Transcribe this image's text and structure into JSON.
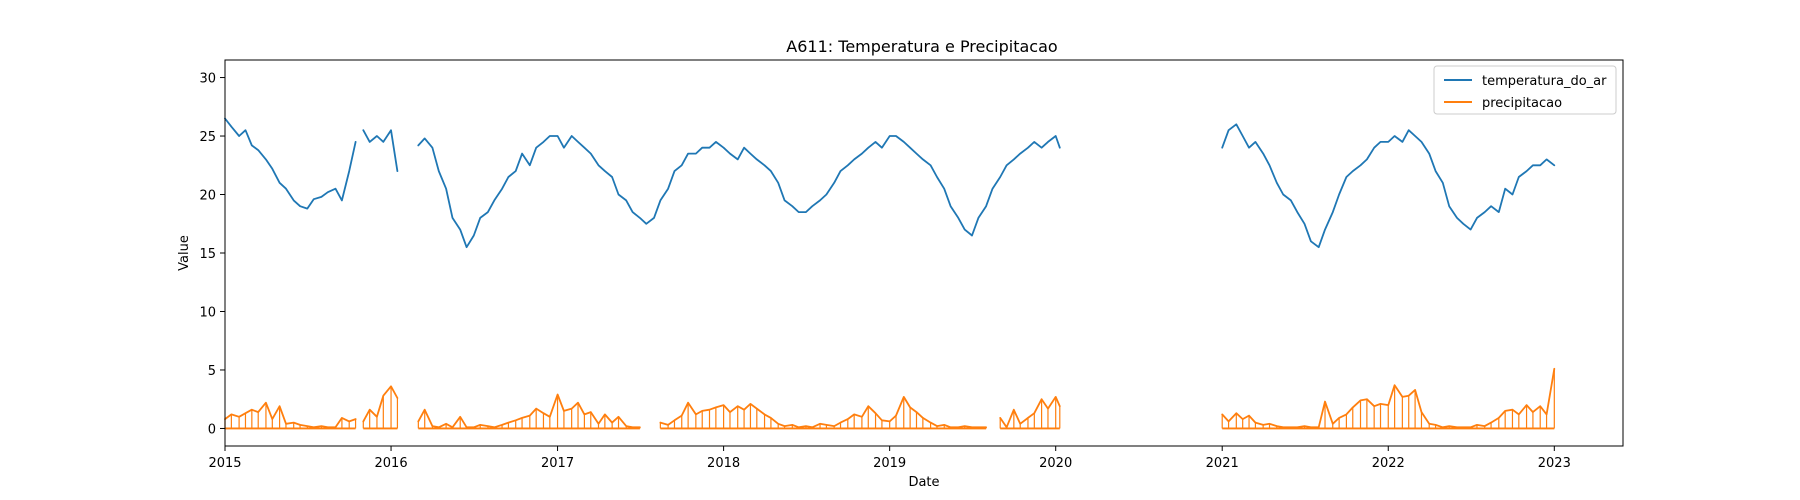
{
  "chart_data": {
    "type": "line",
    "title": "A611: Temperatura e Precipitacao",
    "xlabel": "Date",
    "ylabel": "Value",
    "xlim": [
      "2015-01-01",
      "2023-06-01"
    ],
    "ylim": [
      -1.5,
      31.5
    ],
    "x_ticks": [
      "2015-01-01",
      "2016-01-01",
      "2017-01-01",
      "2018-01-01",
      "2019-01-01",
      "2020-01-01",
      "2021-01-01",
      "2022-01-01",
      "2023-01-01"
    ],
    "x_tick_labels": [
      "2015",
      "2016",
      "2017",
      "2018",
      "2019",
      "2020",
      "2021",
      "2022",
      "2023"
    ],
    "y_ticks": [
      0,
      5,
      10,
      15,
      20,
      25,
      30
    ],
    "y_tick_labels": [
      "0",
      "5",
      "10",
      "15",
      "20",
      "25",
      "30"
    ],
    "grid": false,
    "legend_position": "top-right",
    "series": [
      {
        "name": "temperatura_do_ar",
        "color": "#1f77b4",
        "segments": [
          {
            "x": [
              "2015-01-01",
              "2015-01-15",
              "2015-02-01",
              "2015-02-15",
              "2015-03-01",
              "2015-03-15",
              "2015-04-01",
              "2015-04-15",
              "2015-05-01",
              "2015-05-15",
              "2015-06-01",
              "2015-06-15",
              "2015-07-01",
              "2015-07-15",
              "2015-08-01",
              "2015-08-15",
              "2015-09-01",
              "2015-09-15",
              "2015-10-01",
              "2015-10-15"
            ],
            "y": [
              26.5,
              25.8,
              25.0,
              25.5,
              24.2,
              23.8,
              23.0,
              22.2,
              21.0,
              20.5,
              19.5,
              19.0,
              18.8,
              19.6,
              19.8,
              20.2,
              20.5,
              19.5,
              22.0,
              24.5
            ]
          },
          {
            "x": [
              "2015-11-01",
              "2015-11-15",
              "2015-12-01",
              "2015-12-15",
              "2016-01-01",
              "2016-01-15"
            ],
            "y": [
              25.5,
              24.5,
              25.0,
              24.5,
              25.5,
              22.0
            ]
          },
          {
            "x": [
              "2016-03-01",
              "2016-03-15",
              "2016-04-01",
              "2016-04-15",
              "2016-05-01",
              "2016-05-15",
              "2016-06-01",
              "2016-06-15",
              "2016-07-01",
              "2016-07-15",
              "2016-08-01",
              "2016-08-15",
              "2016-09-01",
              "2016-09-15",
              "2016-10-01",
              "2016-10-15",
              "2016-11-01",
              "2016-11-15",
              "2016-12-01",
              "2016-12-15",
              "2017-01-01",
              "2017-01-15",
              "2017-02-01",
              "2017-02-15",
              "2017-03-01",
              "2017-03-15",
              "2017-04-01",
              "2017-04-15",
              "2017-05-01",
              "2017-05-15",
              "2017-06-01",
              "2017-06-15",
              "2017-07-01",
              "2017-07-15",
              "2017-08-01",
              "2017-08-15",
              "2017-09-01",
              "2017-09-15",
              "2017-10-01",
              "2017-10-15",
              "2017-11-01",
              "2017-11-15",
              "2017-12-01",
              "2017-12-15",
              "2018-01-01",
              "2018-01-15",
              "2018-02-01",
              "2018-02-15",
              "2018-03-01",
              "2018-03-15",
              "2018-04-01",
              "2018-04-15",
              "2018-05-01",
              "2018-05-15",
              "2018-06-01",
              "2018-06-15",
              "2018-07-01",
              "2018-07-15",
              "2018-08-01",
              "2018-08-15",
              "2018-09-01",
              "2018-09-15",
              "2018-10-01",
              "2018-10-15",
              "2018-11-01",
              "2018-11-15",
              "2018-12-01",
              "2018-12-15",
              "2019-01-01",
              "2019-01-15",
              "2019-02-01",
              "2019-02-15",
              "2019-03-01",
              "2019-03-15",
              "2019-04-01",
              "2019-04-15",
              "2019-05-01",
              "2019-05-15",
              "2019-06-01",
              "2019-06-15",
              "2019-07-01",
              "2019-07-15",
              "2019-08-01",
              "2019-08-15",
              "2019-09-01",
              "2019-09-15",
              "2019-10-01",
              "2019-10-15",
              "2019-11-01",
              "2019-11-15",
              "2019-12-01",
              "2019-12-15",
              "2020-01-01",
              "2020-01-10"
            ],
            "y": [
              24.2,
              24.8,
              24.0,
              22.0,
              20.5,
              18.0,
              17.0,
              15.5,
              16.5,
              18.0,
              18.5,
              19.5,
              20.5,
              21.5,
              22.0,
              23.5,
              22.5,
              24.0,
              24.5,
              25.0,
              25.0,
              24.0,
              25.0,
              24.5,
              24.0,
              23.5,
              22.5,
              22.0,
              21.5,
              20.0,
              19.5,
              18.5,
              18.0,
              17.5,
              18.0,
              19.5,
              20.5,
              22.0,
              22.5,
              23.5,
              23.5,
              24.0,
              24.0,
              24.5,
              24.0,
              23.5,
              23.0,
              24.0,
              23.5,
              23.0,
              22.5,
              22.0,
              21.0,
              19.5,
              19.0,
              18.5,
              18.5,
              19.0,
              19.5,
              20.0,
              21.0,
              22.0,
              22.5,
              23.0,
              23.5,
              24.0,
              24.5,
              24.0,
              25.0,
              25.0,
              24.5,
              24.0,
              23.5,
              23.0,
              22.5,
              21.5,
              20.5,
              19.0,
              18.0,
              17.0,
              16.5,
              18.0,
              19.0,
              20.5,
              21.5,
              22.5,
              23.0,
              23.5,
              24.0,
              24.5,
              24.0,
              24.5,
              25.0,
              24.0
            ]
          },
          {
            "x": [
              "2021-01-01",
              "2021-01-15",
              "2021-02-01",
              "2021-02-15",
              "2021-03-01",
              "2021-03-15",
              "2021-04-01",
              "2021-04-15",
              "2021-05-01",
              "2021-05-15",
              "2021-06-01",
              "2021-06-15",
              "2021-07-01",
              "2021-07-15",
              "2021-08-01",
              "2021-08-15",
              "2021-09-01",
              "2021-09-15",
              "2021-10-01",
              "2021-10-15",
              "2021-11-01",
              "2021-11-15",
              "2021-12-01",
              "2021-12-15",
              "2022-01-01",
              "2022-01-15",
              "2022-02-01",
              "2022-02-15",
              "2022-03-01",
              "2022-03-15",
              "2022-04-01",
              "2022-04-15",
              "2022-05-01",
              "2022-05-15",
              "2022-06-01",
              "2022-06-15",
              "2022-07-01",
              "2022-07-15",
              "2022-08-01",
              "2022-08-15",
              "2022-09-01",
              "2022-09-15",
              "2022-10-01",
              "2022-10-15",
              "2022-11-01",
              "2022-11-15",
              "2022-12-01",
              "2022-12-15",
              "2023-01-01"
            ],
            "y": [
              24.0,
              25.5,
              26.0,
              25.0,
              24.0,
              24.5,
              23.5,
              22.5,
              21.0,
              20.0,
              19.5,
              18.5,
              17.5,
              16.0,
              15.5,
              17.0,
              18.5,
              20.0,
              21.5,
              22.0,
              22.5,
              23.0,
              24.0,
              24.5,
              24.5,
              25.0,
              24.5,
              25.5,
              25.0,
              24.5,
              23.5,
              22.0,
              21.0,
              19.0,
              18.0,
              17.5,
              17.0,
              18.0,
              18.5,
              19.0,
              18.5,
              20.5,
              20.0,
              21.5,
              22.0,
              22.5,
              22.5,
              23.0,
              22.5
            ]
          }
        ]
      },
      {
        "name": "precipitacao",
        "color": "#ff7f0e",
        "segments": [
          {
            "x": [
              "2015-01-01",
              "2015-01-15",
              "2015-02-01",
              "2015-02-15",
              "2015-03-01",
              "2015-03-15",
              "2015-04-01",
              "2015-04-15",
              "2015-05-01",
              "2015-05-15",
              "2015-06-01",
              "2015-06-15",
              "2015-07-01",
              "2015-07-15",
              "2015-08-01",
              "2015-08-15",
              "2015-09-01",
              "2015-09-15",
              "2015-10-01",
              "2015-10-15"
            ],
            "y": [
              0.8,
              1.2,
              1.0,
              1.3,
              1.6,
              1.4,
              2.2,
              0.8,
              1.9,
              0.4,
              0.5,
              0.3,
              0.2,
              0.1,
              0.2,
              0.1,
              0.1,
              0.9,
              0.6,
              0.8
            ]
          },
          {
            "x": [
              "2015-11-01",
              "2015-11-15",
              "2015-12-01",
              "2015-12-15",
              "2016-01-01",
              "2016-01-15"
            ],
            "y": [
              0.6,
              1.6,
              1.0,
              2.8,
              3.6,
              2.6
            ]
          },
          {
            "x": [
              "2016-03-01",
              "2016-03-15",
              "2016-04-01",
              "2016-04-15",
              "2016-05-01",
              "2016-05-15",
              "2016-06-01",
              "2016-06-15",
              "2016-07-01",
              "2016-07-15",
              "2016-08-01",
              "2016-08-15",
              "2016-09-01",
              "2016-09-15",
              "2016-10-01",
              "2016-10-15",
              "2016-11-01",
              "2016-11-15",
              "2016-12-01",
              "2016-12-15",
              "2017-01-01",
              "2017-01-15",
              "2017-02-01",
              "2017-02-15",
              "2017-03-01",
              "2017-03-15",
              "2017-04-01",
              "2017-04-15",
              "2017-05-01",
              "2017-05-15",
              "2017-06-01",
              "2017-06-15",
              "2017-07-01"
            ],
            "y": [
              0.6,
              1.6,
              0.2,
              0.1,
              0.4,
              0.1,
              1.0,
              0.1,
              0.1,
              0.3,
              0.2,
              0.1,
              0.3,
              0.5,
              0.7,
              0.9,
              1.1,
              1.7,
              1.3,
              1.0,
              2.9,
              1.5,
              1.7,
              2.2,
              1.2,
              1.4,
              0.4,
              1.2,
              0.5,
              1.0,
              0.2,
              0.1,
              0.1
            ]
          },
          {
            "x": [
              "2017-08-15",
              "2017-09-01",
              "2017-09-15",
              "2017-10-01",
              "2017-10-15",
              "2017-11-01",
              "2017-11-15",
              "2017-12-01",
              "2017-12-15",
              "2018-01-01",
              "2018-01-15",
              "2018-02-01",
              "2018-02-15",
              "2018-03-01",
              "2018-03-15",
              "2018-04-01",
              "2018-04-15",
              "2018-05-01",
              "2018-05-15",
              "2018-06-01",
              "2018-06-15",
              "2018-07-01",
              "2018-07-15",
              "2018-08-01",
              "2018-08-15",
              "2018-09-01",
              "2018-09-15",
              "2018-10-01",
              "2018-10-15",
              "2018-11-01",
              "2018-11-15",
              "2018-12-01",
              "2018-12-15",
              "2019-01-01",
              "2019-01-15",
              "2019-02-01",
              "2019-02-15",
              "2019-03-01",
              "2019-03-15",
              "2019-04-01",
              "2019-04-15",
              "2019-05-01",
              "2019-05-15",
              "2019-06-01",
              "2019-06-15",
              "2019-07-01",
              "2019-07-15",
              "2019-08-01"
            ],
            "y": [
              0.5,
              0.3,
              0.7,
              1.1,
              2.2,
              1.2,
              1.5,
              1.6,
              1.8,
              2.0,
              1.4,
              1.9,
              1.6,
              2.1,
              1.7,
              1.2,
              0.9,
              0.4,
              0.2,
              0.3,
              0.1,
              0.2,
              0.1,
              0.4,
              0.3,
              0.2,
              0.5,
              0.8,
              1.2,
              1.0,
              1.9,
              1.3,
              0.7,
              0.6,
              1.1,
              2.7,
              1.8,
              1.4,
              0.9,
              0.5,
              0.2,
              0.3,
              0.1,
              0.1,
              0.2,
              0.1,
              0.1,
              0.1
            ]
          },
          {
            "x": [
              "2019-09-01",
              "2019-09-15",
              "2019-10-01",
              "2019-10-15",
              "2019-11-01",
              "2019-11-15",
              "2019-12-01",
              "2019-12-15",
              "2020-01-01",
              "2020-01-10"
            ],
            "y": [
              0.9,
              0.1,
              1.6,
              0.4,
              0.9,
              1.3,
              2.5,
              1.7,
              2.7,
              1.9
            ]
          },
          {
            "x": [
              "2021-01-01",
              "2021-01-15",
              "2021-02-01",
              "2021-02-15",
              "2021-03-01",
              "2021-03-15",
              "2021-04-01",
              "2021-04-15",
              "2021-05-01",
              "2021-05-15",
              "2021-06-01",
              "2021-06-15",
              "2021-07-01",
              "2021-07-15",
              "2021-08-01",
              "2021-08-15",
              "2021-09-01",
              "2021-09-15",
              "2021-10-01",
              "2021-10-15",
              "2021-11-01",
              "2021-11-15",
              "2021-12-01",
              "2021-12-15",
              "2022-01-01",
              "2022-01-15",
              "2022-02-01",
              "2022-02-15",
              "2022-03-01",
              "2022-03-15",
              "2022-04-01",
              "2022-04-15",
              "2022-05-01",
              "2022-05-15",
              "2022-06-01",
              "2022-06-15",
              "2022-07-01",
              "2022-07-15",
              "2022-08-01",
              "2022-08-15",
              "2022-09-01",
              "2022-09-15",
              "2022-10-01",
              "2022-10-15",
              "2022-11-01",
              "2022-11-15",
              "2022-12-01",
              "2022-12-15",
              "2023-01-01"
            ],
            "y": [
              1.2,
              0.6,
              1.3,
              0.8,
              1.1,
              0.5,
              0.3,
              0.4,
              0.2,
              0.1,
              0.1,
              0.1,
              0.2,
              0.1,
              0.1,
              2.3,
              0.4,
              0.9,
              1.2,
              1.8,
              2.4,
              2.5,
              1.9,
              2.1,
              2.0,
              3.7,
              2.7,
              2.8,
              3.3,
              1.4,
              0.4,
              0.3,
              0.1,
              0.2,
              0.1,
              0.1,
              0.1,
              0.3,
              0.2,
              0.5,
              0.9,
              1.5,
              1.6,
              1.2,
              2.0,
              1.4,
              1.9,
              1.2,
              5.1
            ]
          }
        ]
      }
    ]
  }
}
